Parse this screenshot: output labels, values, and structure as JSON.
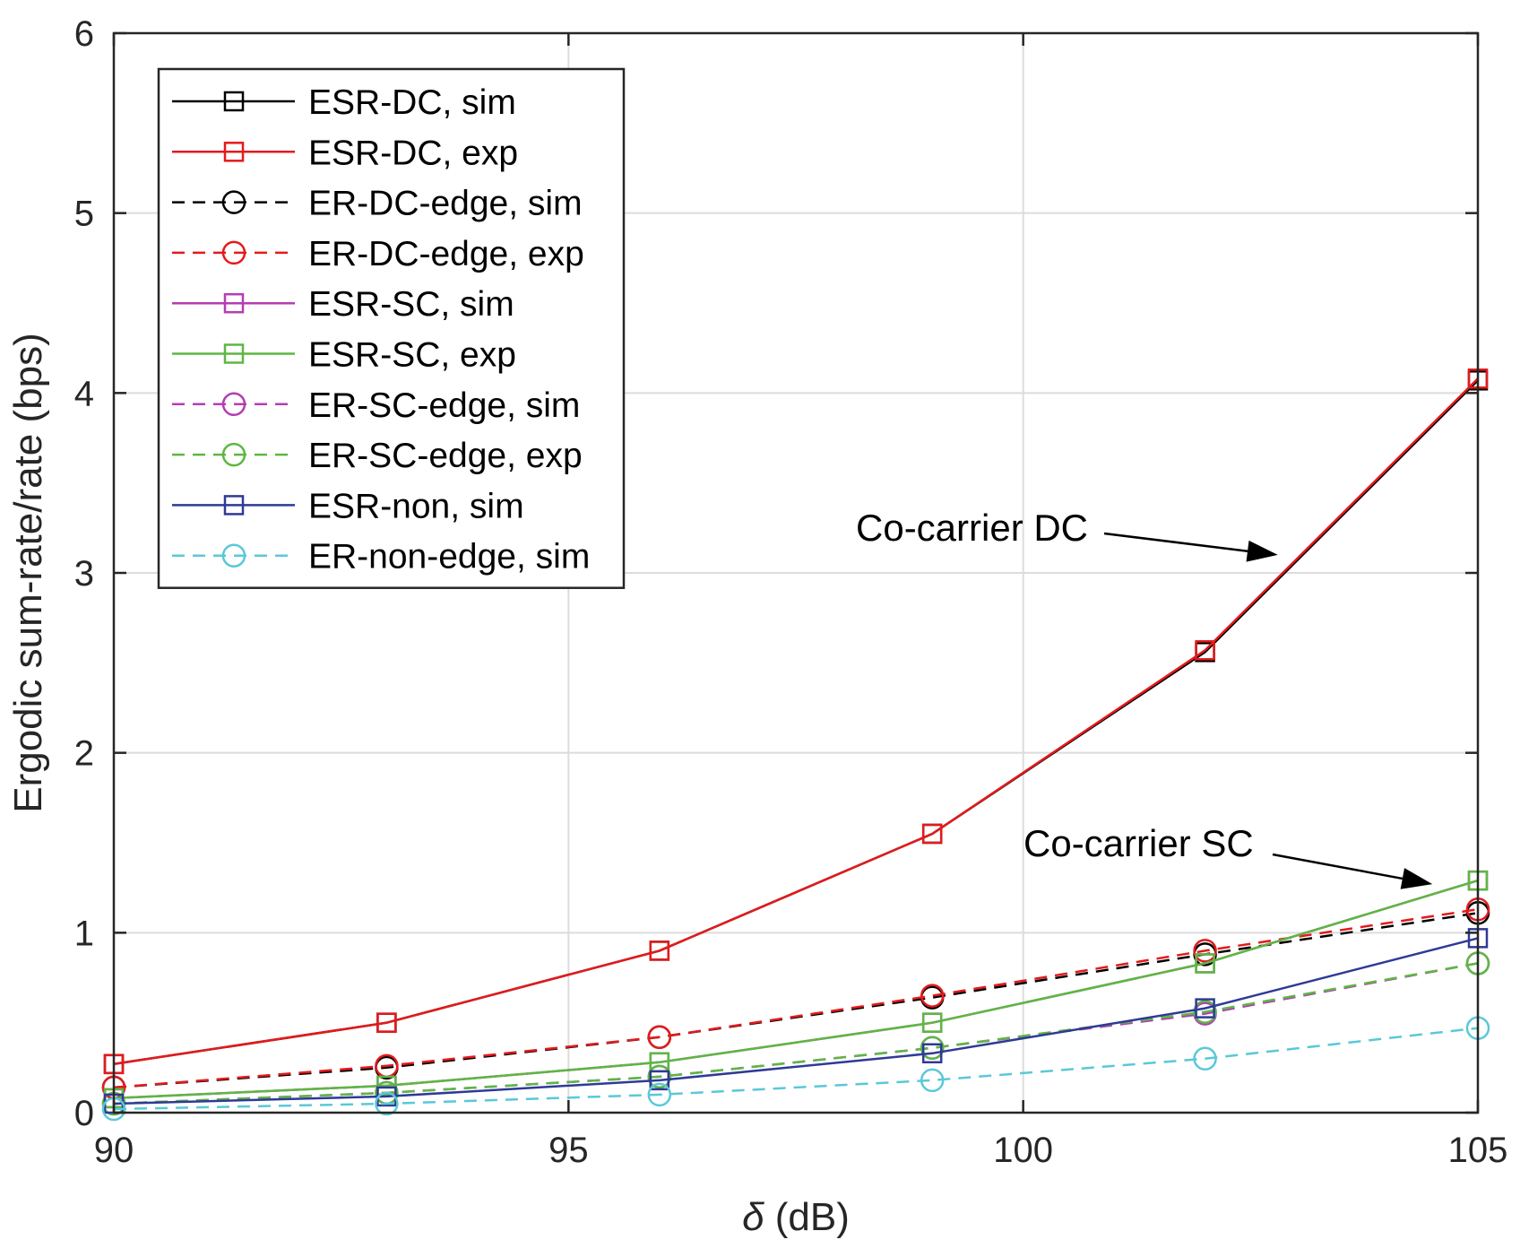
{
  "chart_data": {
    "type": "line",
    "title": "",
    "xlabel_symbol": "δ",
    "xlabel_unit": " (dB)",
    "ylabel": "Ergodic sum-rate/rate (bps)",
    "xlim": [
      90,
      105
    ],
    "ylim": [
      0,
      6
    ],
    "xticks": [
      90,
      95,
      100,
      105
    ],
    "yticks": [
      0,
      1,
      2,
      3,
      4,
      5,
      6
    ],
    "xtick_labels": [
      "90",
      "95",
      "100",
      "105"
    ],
    "ytick_labels": [
      "0",
      "1",
      "2",
      "3",
      "4",
      "5",
      "6"
    ],
    "grid": true,
    "legend_position": "top-left",
    "x": [
      90,
      93,
      96,
      99,
      102,
      105
    ],
    "series": [
      {
        "name": "ESR-DC, sim",
        "color": "#000000",
        "dash": "solid",
        "marker": "square",
        "values": [
          0.27,
          0.5,
          0.9,
          1.55,
          2.56,
          4.07
        ]
      },
      {
        "name": "ESR-DC, exp",
        "color": "#e41a1c",
        "dash": "solid",
        "marker": "square",
        "values": [
          0.27,
          0.5,
          0.9,
          1.55,
          2.57,
          4.08
        ]
      },
      {
        "name": "ER-DC-edge, sim",
        "color": "#000000",
        "dash": "dashed",
        "marker": "circle",
        "values": [
          0.14,
          0.25,
          0.42,
          0.64,
          0.88,
          1.11
        ]
      },
      {
        "name": "ER-DC-edge, exp",
        "color": "#e41a1c",
        "dash": "dashed",
        "marker": "circle",
        "values": [
          0.14,
          0.26,
          0.42,
          0.65,
          0.9,
          1.13
        ]
      },
      {
        "name": "ESR-SC, sim",
        "color": "#b43db4",
        "dash": "solid",
        "marker": "square",
        "values": [
          0.08,
          0.15,
          0.28,
          0.5,
          0.83,
          1.29
        ]
      },
      {
        "name": "ESR-SC, exp",
        "color": "#5db742",
        "dash": "solid",
        "marker": "square",
        "values": [
          0.08,
          0.15,
          0.28,
          0.5,
          0.83,
          1.29
        ]
      },
      {
        "name": "ER-SC-edge, sim",
        "color": "#b43db4",
        "dash": "dashed",
        "marker": "circle",
        "values": [
          0.05,
          0.11,
          0.2,
          0.36,
          0.55,
          0.83
        ]
      },
      {
        "name": "ER-SC-edge, exp",
        "color": "#5db742",
        "dash": "dashed",
        "marker": "circle",
        "values": [
          0.05,
          0.11,
          0.2,
          0.36,
          0.56,
          0.83
        ]
      },
      {
        "name": "ESR-non, sim",
        "color": "#2e3a96",
        "dash": "solid",
        "marker": "square",
        "values": [
          0.05,
          0.09,
          0.18,
          0.33,
          0.58,
          0.97
        ]
      },
      {
        "name": "ER-non-edge, sim",
        "color": "#5ac8d8",
        "dash": "dashed",
        "marker": "circle",
        "values": [
          0.02,
          0.05,
          0.1,
          0.18,
          0.3,
          0.47
        ]
      }
    ],
    "annotations": [
      {
        "text": "Co-carrier DC",
        "points_to": [
          102.8,
          3.1
        ]
      },
      {
        "text": "Co-carrier SC",
        "points_to": [
          104.5,
          1.27
        ]
      }
    ]
  }
}
